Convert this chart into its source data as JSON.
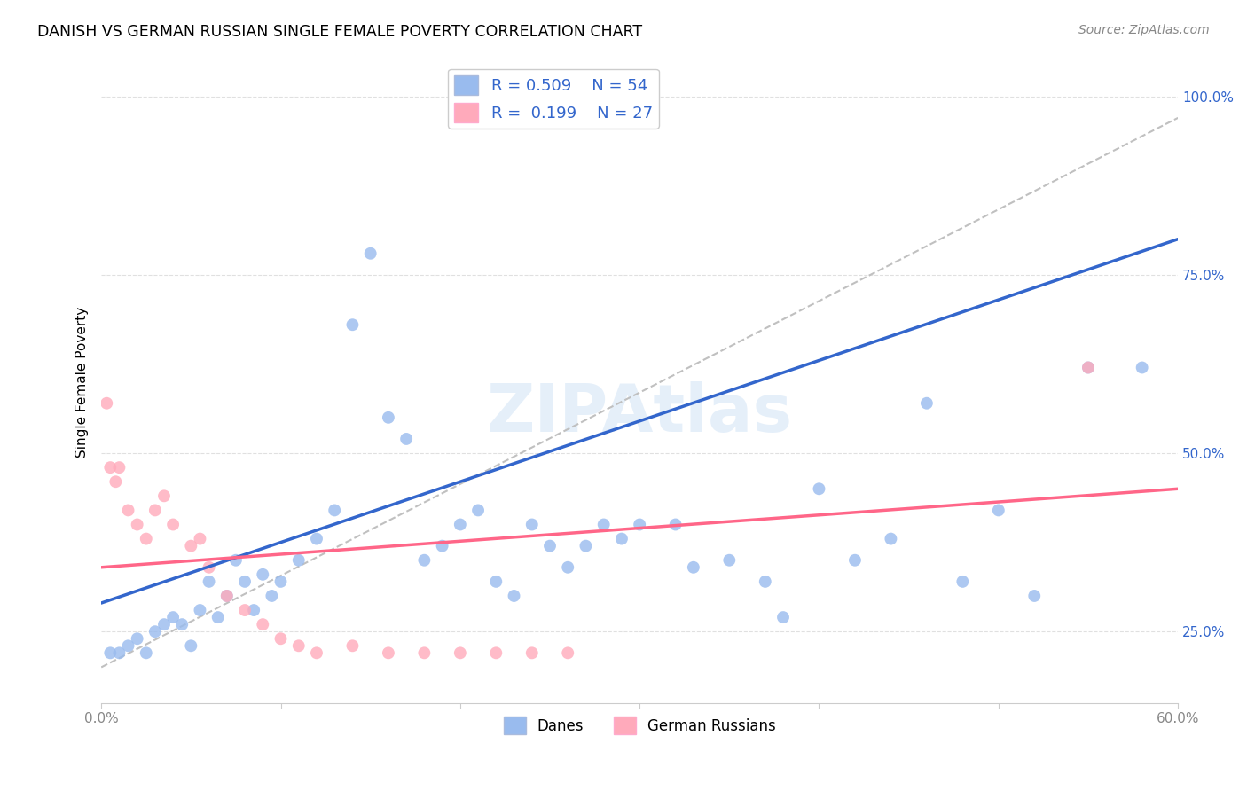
{
  "title": "DANISH VS GERMAN RUSSIAN SINGLE FEMALE POVERTY CORRELATION CHART",
  "source": "Source: ZipAtlas.com",
  "ylabel": "Single Female Poverty",
  "watermark": "ZIPAtlas",
  "legend_blue_R": "0.509",
  "legend_blue_N": "54",
  "legend_pink_R": "0.199",
  "legend_pink_N": "27",
  "blue_scatter_color": "#99BBEE",
  "pink_scatter_color": "#FFAABB",
  "blue_line_color": "#3366CC",
  "pink_line_color": "#FF6688",
  "gray_dash_color": "#C0C0C0",
  "danes_x": [
    0.5,
    1.0,
    1.5,
    2.0,
    2.5,
    3.0,
    3.5,
    4.0,
    4.5,
    5.0,
    5.5,
    6.0,
    6.5,
    7.0,
    7.5,
    8.0,
    8.5,
    9.0,
    9.5,
    10.0,
    11.0,
    12.0,
    13.0,
    14.0,
    15.0,
    16.0,
    17.0,
    18.0,
    19.0,
    20.0,
    21.0,
    22.0,
    23.0,
    24.0,
    25.0,
    26.0,
    27.0,
    28.0,
    29.0,
    30.0,
    32.0,
    33.0,
    35.0,
    37.0,
    38.0,
    40.0,
    42.0,
    44.0,
    46.0,
    48.0,
    50.0,
    52.0,
    55.0,
    58.0
  ],
  "danes_y": [
    22,
    22,
    23,
    24,
    22,
    25,
    26,
    27,
    26,
    23,
    28,
    32,
    27,
    30,
    35,
    32,
    28,
    33,
    30,
    32,
    35,
    38,
    42,
    68,
    78,
    55,
    52,
    35,
    37,
    40,
    42,
    32,
    30,
    40,
    37,
    34,
    37,
    40,
    38,
    40,
    40,
    34,
    35,
    32,
    27,
    45,
    35,
    38,
    57,
    32,
    42,
    30,
    62,
    62
  ],
  "german_x": [
    0.3,
    0.5,
    0.8,
    1.0,
    1.5,
    2.0,
    2.5,
    3.0,
    3.5,
    4.0,
    5.0,
    5.5,
    6.0,
    7.0,
    8.0,
    9.0,
    10.0,
    11.0,
    12.0,
    14.0,
    16.0,
    18.0,
    20.0,
    22.0,
    24.0,
    26.0,
    55.0
  ],
  "german_y": [
    57,
    48,
    46,
    48,
    42,
    40,
    38,
    42,
    44,
    40,
    37,
    38,
    34,
    30,
    28,
    26,
    24,
    23,
    22,
    23,
    22,
    22,
    22,
    22,
    22,
    22,
    62
  ],
  "blue_line_x0": 0,
  "blue_line_y0": 29,
  "blue_line_x1": 60,
  "blue_line_y1": 80,
  "pink_line_x0": 0,
  "pink_line_y0": 34,
  "pink_line_x1": 60,
  "pink_line_y1": 45,
  "gray_x0": 0,
  "gray_y0": 20,
  "gray_x1": 60,
  "gray_y1": 97,
  "xlim": [
    0,
    60
  ],
  "ylim": [
    15,
    105
  ],
  "background_color": "#FFFFFF",
  "grid_color": "#DDDDDD"
}
